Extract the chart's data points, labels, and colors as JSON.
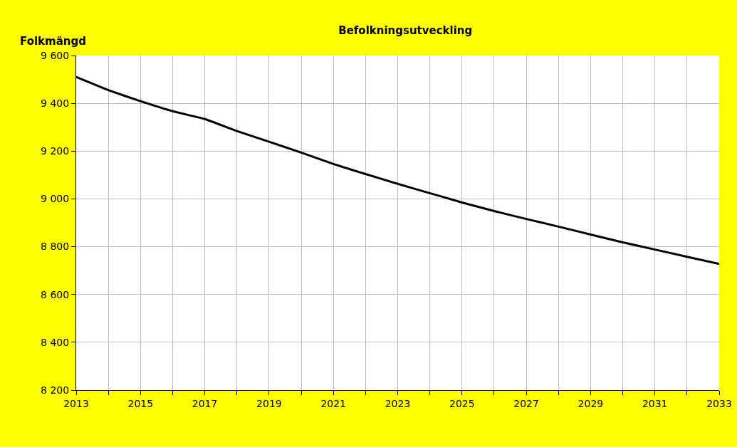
{
  "chart_data": {
    "type": "line",
    "title": "Befolkningsutveckling",
    "ylabel": "Folkmängd",
    "x": [
      2013,
      2014,
      2015,
      2016,
      2017,
      2018,
      2019,
      2020,
      2021,
      2022,
      2023,
      2024,
      2025,
      2026,
      2027,
      2028,
      2029,
      2030,
      2031,
      2032,
      2033
    ],
    "series": [
      {
        "color": "#000000",
        "values": [
          9510,
          9455,
          9409,
          9367,
          9334,
          9284,
          9239,
          9194,
          9146,
          9104,
          9063,
          9024,
          8985,
          8949,
          8916,
          8884,
          8851,
          8818,
          8788,
          8758,
          8728
        ]
      }
    ],
    "xlim": [
      2013,
      2033
    ],
    "xticks": [
      2013,
      {
        "value": 2014,
        "label": null
      },
      2015,
      {
        "value": 2016,
        "label": null
      },
      2017,
      {
        "value": 2018,
        "label": null
      },
      2019,
      {
        "value": 2020,
        "label": null
      },
      2021,
      {
        "value": 2022,
        "label": null
      },
      2023,
      {
        "value": 2024,
        "label": null
      },
      2025,
      {
        "value": 2026,
        "label": null
      },
      2027,
      {
        "value": 2028,
        "label": null
      },
      2029,
      {
        "value": 2030,
        "label": null
      },
      2031,
      {
        "value": 2032,
        "label": null
      },
      2033
    ],
    "ylim": [
      8200,
      9600
    ],
    "yticks": [
      {
        "value": 8200,
        "label": "8 200"
      },
      {
        "value": 8400,
        "label": "8 400"
      },
      {
        "value": 8600,
        "label": "8 600"
      },
      {
        "value": 8800,
        "label": "8 800"
      },
      {
        "value": 9000,
        "label": "9 000"
      },
      {
        "value": 9200,
        "label": "9 200"
      },
      {
        "value": 9400,
        "label": "9 400"
      },
      {
        "value": 9600,
        "label": "9 600"
      }
    ],
    "grid": true,
    "marker": "none",
    "line_style": "solid"
  }
}
